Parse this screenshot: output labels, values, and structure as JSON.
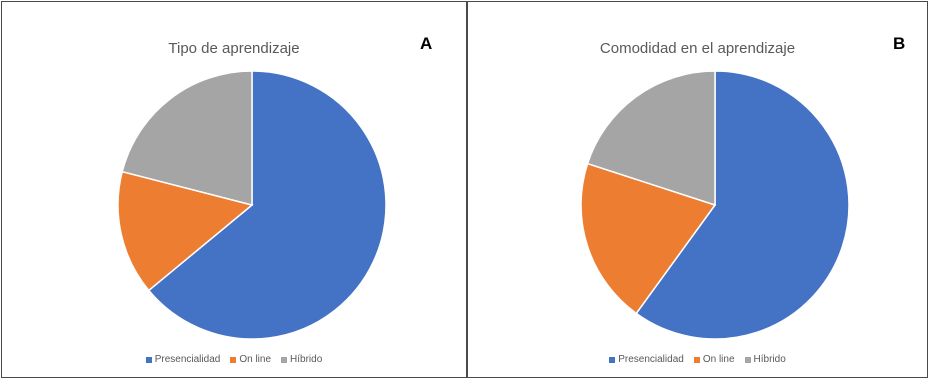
{
  "chart_data": [
    {
      "type": "pie",
      "title": "Tipo de aprendizaje",
      "panel_label": "A",
      "categories": [
        "Presencialidad",
        "On line",
        "Híbrido"
      ],
      "values": [
        64,
        15,
        21
      ],
      "colors": [
        "#4472c4",
        "#ed7d31",
        "#a5a5a5"
      ],
      "legend_position": "bottom"
    },
    {
      "type": "pie",
      "title": "Comodidad en el aprendizaje",
      "panel_label": "B",
      "categories": [
        "Presencialidad",
        "On line",
        "Híbrido"
      ],
      "values": [
        60,
        20,
        20
      ],
      "colors": [
        "#4472c4",
        "#ed7d31",
        "#a5a5a5"
      ],
      "legend_position": "bottom"
    }
  ]
}
